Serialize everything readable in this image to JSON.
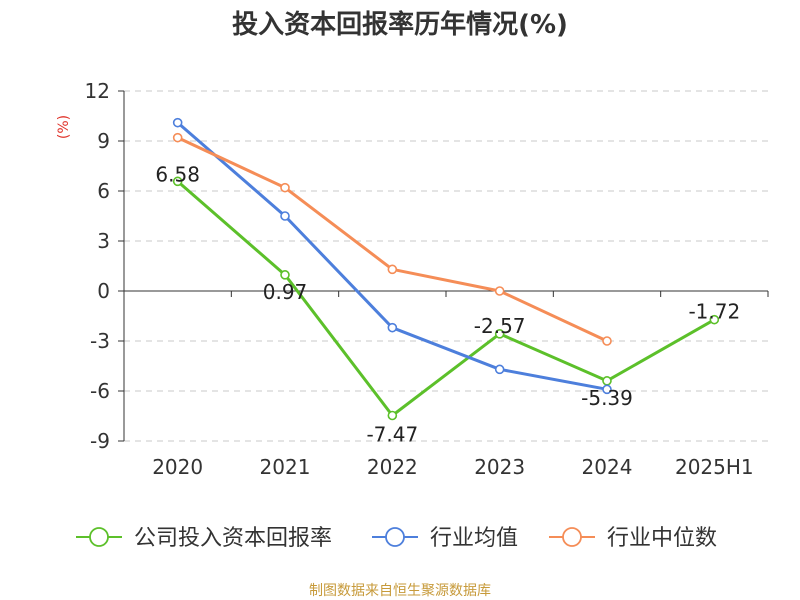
{
  "chart_data": {
    "type": "line",
    "title": "投入资本回报率历年情况(%)",
    "ylabel": "(%)",
    "categories": [
      "2020",
      "2021",
      "2022",
      "2023",
      "2024",
      "2025H1"
    ],
    "ylim": [
      -9,
      12
    ],
    "yticks": [
      12,
      9,
      6,
      3,
      0,
      -3,
      -6,
      -9
    ],
    "grid": true,
    "legend_position": "bottom",
    "series": [
      {
        "name": "公司投入资本回报率",
        "color": "#5cc02a",
        "values": [
          6.58,
          0.97,
          -7.47,
          -2.57,
          -5.39,
          -1.72
        ],
        "labels": [
          "6.58",
          "0.97",
          "-7.47",
          "-2.57",
          "-5.39",
          "-1.72"
        ]
      },
      {
        "name": "行业均值",
        "color": "#4d7fdc",
        "values": [
          10.1,
          4.5,
          -2.2,
          -4.7,
          -5.9,
          null
        ]
      },
      {
        "name": "行业中位数",
        "color": "#f58d57",
        "values": [
          9.2,
          6.2,
          1.3,
          0.0,
          -3.0,
          null
        ]
      }
    ]
  },
  "source": "制图数据来自恒生聚源数据库"
}
